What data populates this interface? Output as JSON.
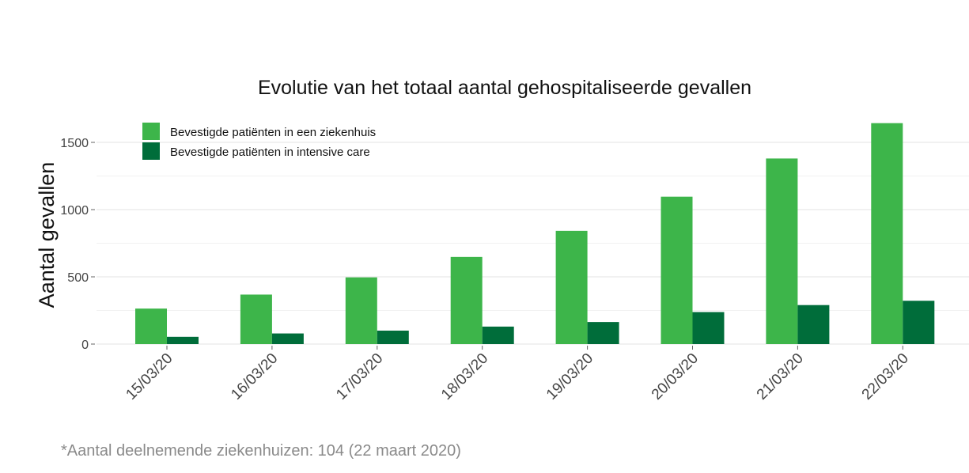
{
  "footnote": "*Aantal deelnemende ziekenhuizen: 104 (22 maart 2020)",
  "chart_data": {
    "type": "bar",
    "title": "Evolutie van het totaal aantal gehospitaliseerde gevallen",
    "xlabel": "",
    "ylabel": "Aantal gevallen",
    "categories": [
      "15/03/20",
      "16/03/20",
      "17/03/20",
      "18/03/20",
      "19/03/20",
      "20/03/20",
      "21/03/20",
      "22/03/20"
    ],
    "series": [
      {
        "name": "Bevestigde patiënten in een ziekenhuis",
        "color": "#3db54a",
        "values": [
          264,
          368,
          496,
          648,
          842,
          1096,
          1380,
          1643
        ]
      },
      {
        "name": "Bevestigde patiënten in intensive care",
        "color": "#006d3a",
        "values": [
          54,
          79,
          100,
          130,
          164,
          238,
          290,
          322
        ]
      }
    ],
    "yticks": [
      0,
      500,
      1000,
      1500
    ],
    "ylim": [
      0,
      1600
    ],
    "grid": true,
    "legend": "top-left"
  }
}
